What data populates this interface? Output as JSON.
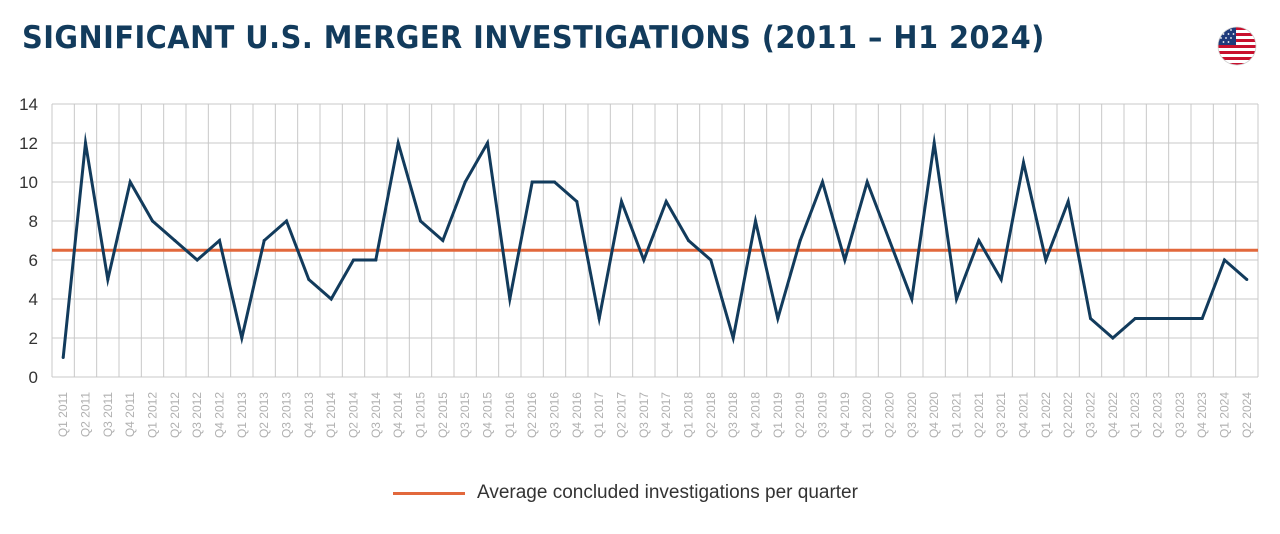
{
  "title": "SIGNIFICANT U.S. MERGER INVESTIGATIONS (2011 – H1 2024)",
  "flag_icon": "us-flag-icon",
  "colors": {
    "title": "#123b5c",
    "series": "#123b5c",
    "average": "#e2683c",
    "grid": "#c8c8c8",
    "tick": "#b0b0b0"
  },
  "chart_data": {
    "type": "line",
    "categories": [
      "Q1 2011",
      "Q2 2011",
      "Q3 2011",
      "Q4 2011",
      "Q1 2012",
      "Q2 2012",
      "Q3 2012",
      "Q4 2012",
      "Q1 2013",
      "Q2 2013",
      "Q3 2013",
      "Q4 2013",
      "Q1 2014",
      "Q2 2014",
      "Q3 2014",
      "Q4 2014",
      "Q1 2015",
      "Q2 2015",
      "Q3 2015",
      "Q4 2015",
      "Q1 2016",
      "Q2 2016",
      "Q3 2016",
      "Q4 2016",
      "Q1 2017",
      "Q2 2017",
      "Q3 2017",
      "Q4 2017",
      "Q1 2018",
      "Q2 2018",
      "Q3 2018",
      "Q4 2018",
      "Q1 2019",
      "Q2 2019",
      "Q3 2019",
      "Q4 2019",
      "Q1 2020",
      "Q2 2020",
      "Q3 2020",
      "Q4 2020",
      "Q1 2021",
      "Q2 2021",
      "Q3 2021",
      "Q4 2021",
      "Q1 2022",
      "Q2 2022",
      "Q3 2022",
      "Q4 2022",
      "Q1 2023",
      "Q2 2023",
      "Q3 2023",
      "Q4 2023",
      "Q1 2024",
      "Q2 2024"
    ],
    "values": [
      1,
      12,
      5,
      10,
      8,
      7,
      6,
      7,
      2,
      7,
      8,
      5,
      4,
      6,
      6,
      12,
      8,
      7,
      10,
      12,
      4,
      10,
      10,
      9,
      3,
      9,
      6,
      9,
      7,
      6,
      2,
      8,
      3,
      7,
      10,
      6,
      10,
      7,
      4,
      12,
      4,
      7,
      5,
      11,
      6,
      9,
      3,
      2,
      3,
      3,
      3,
      3,
      6,
      5
    ],
    "average": {
      "label": "Average concluded investigations per quarter",
      "value": 6.5
    },
    "ylim": [
      0,
      14
    ],
    "yticks": [
      0,
      2,
      4,
      6,
      8,
      10,
      12,
      14
    ],
    "grid": true,
    "legend_position": "bottom-center"
  }
}
